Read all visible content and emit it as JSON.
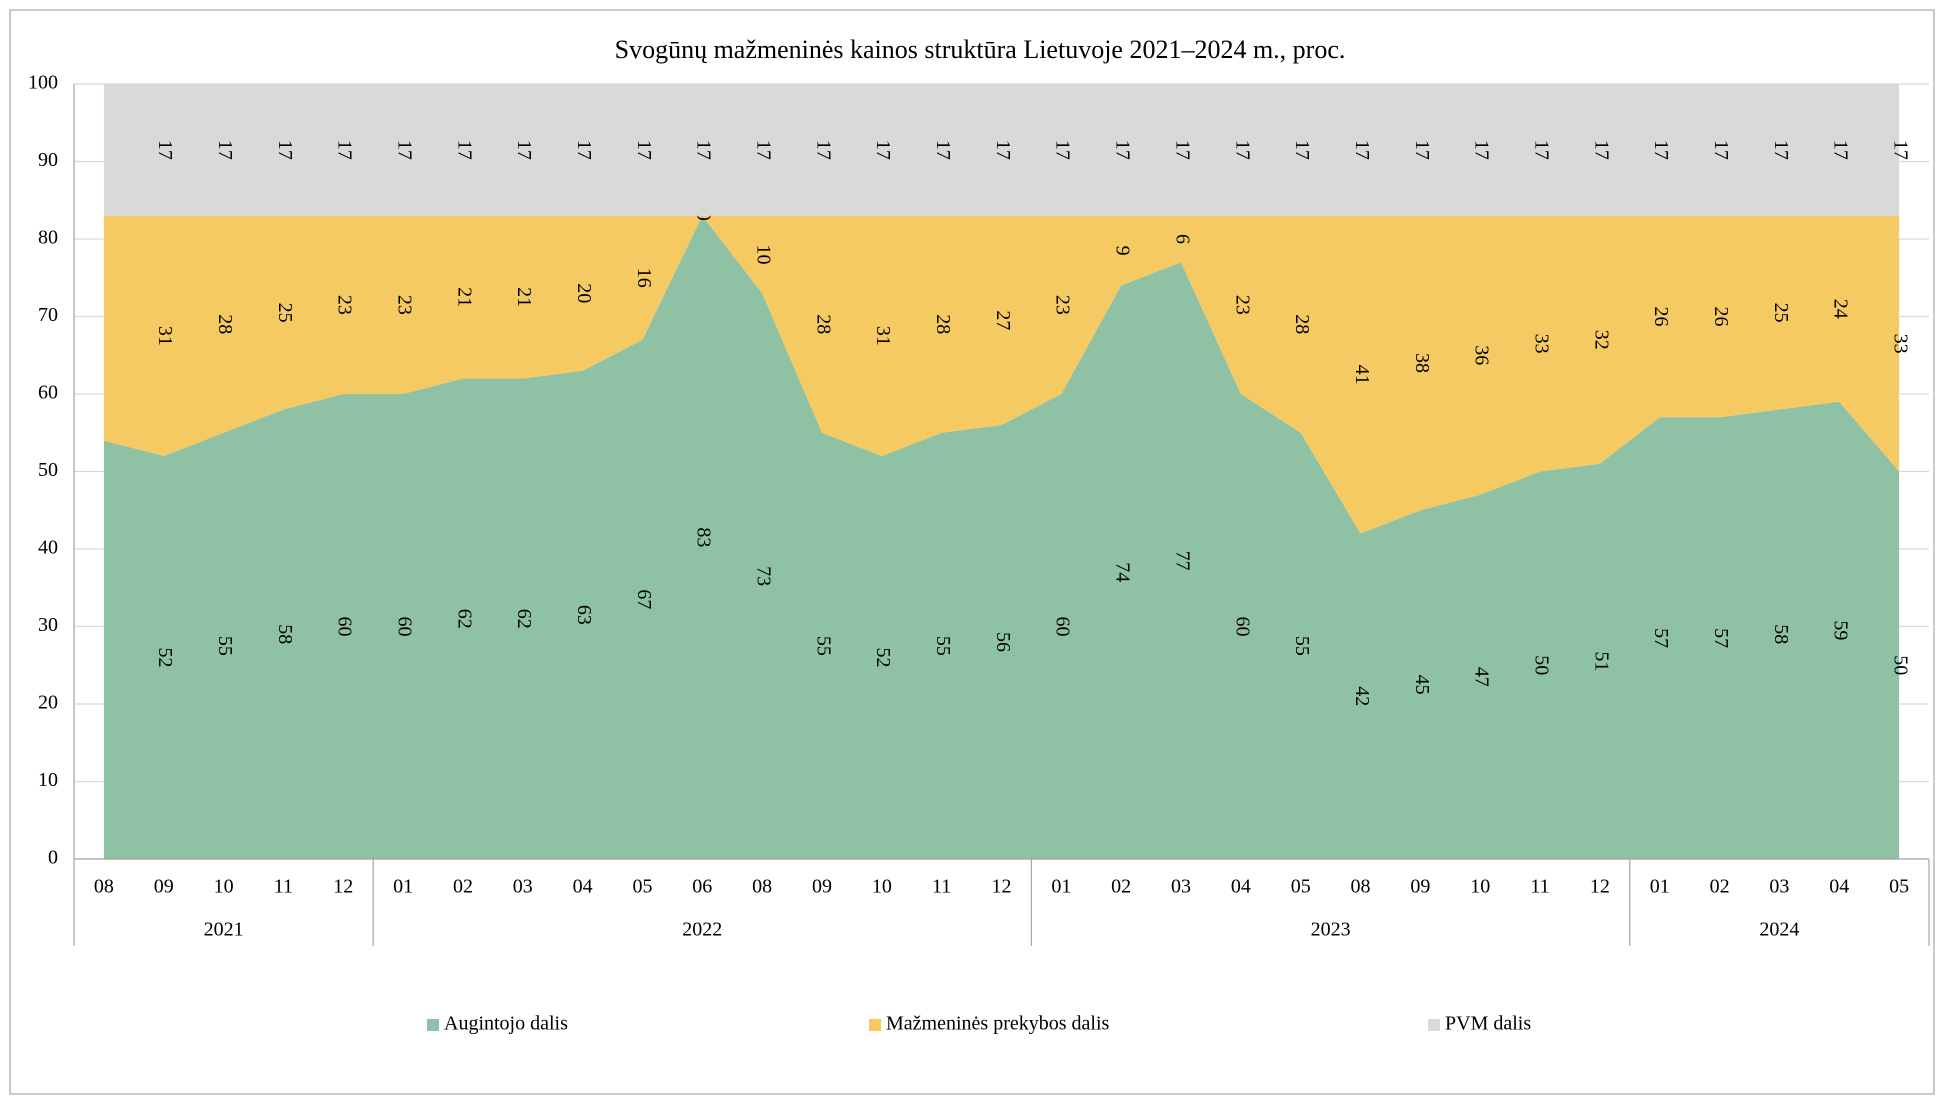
{
  "chart_data": {
    "type": "stacked_area",
    "title": "Svogūnų mažmeninės kainos struktūra Lietuvoje 2021–2024 m., proc.",
    "categories": [
      "08",
      "09",
      "10",
      "11",
      "12",
      "01",
      "02",
      "03",
      "04",
      "05",
      "06",
      "08",
      "09",
      "10",
      "11",
      "12",
      "01",
      "02",
      "03",
      "04",
      "05",
      "08",
      "09",
      "10",
      "11",
      "12",
      "01",
      "02",
      "03",
      "04",
      "05"
    ],
    "years": [
      "2021",
      null,
      null,
      null,
      null,
      "2022",
      null,
      null,
      null,
      null,
      null,
      null,
      null,
      null,
      null,
      null,
      "2023",
      null,
      null,
      null,
      null,
      null,
      null,
      null,
      null,
      null,
      "2024",
      null,
      null,
      null,
      null
    ],
    "series": [
      {
        "name": "Augintojo dalis",
        "color": "#8fc1a5",
        "values": [
          54,
          52,
          55,
          58,
          60,
          60,
          62,
          62,
          63,
          67,
          83,
          73,
          55,
          52,
          55,
          56,
          60,
          74,
          77,
          60,
          55,
          42,
          45,
          47,
          50,
          51,
          57,
          57,
          58,
          59,
          50
        ],
        "value_labels": [
          null,
          "52",
          "55",
          "58",
          "60",
          "60",
          "62",
          "62",
          "63",
          "67",
          "83",
          "73",
          "55",
          "52",
          "55",
          "56",
          "60",
          "74",
          "77",
          "60",
          "55",
          "42",
          "45",
          "47",
          "50",
          "51",
          "57",
          "57",
          "58",
          "59",
          "50"
        ]
      },
      {
        "name": "Mažmeninės prekybos dalis",
        "color": "#f5ca63",
        "values": [
          29,
          31,
          28,
          25,
          23,
          23,
          21,
          21,
          20,
          16,
          0,
          10,
          28,
          31,
          28,
          27,
          23,
          9,
          6,
          23,
          28,
          41,
          38,
          36,
          33,
          32,
          26,
          26,
          25,
          24,
          33
        ],
        "value_labels": [
          null,
          "31",
          "28",
          "25",
          "23",
          "23",
          "21",
          "21",
          "20",
          "16",
          "0",
          "10",
          "28",
          "31",
          "28",
          "27",
          "23",
          "9",
          "6",
          "23",
          "28",
          "41",
          "38",
          "36",
          "33",
          "32",
          "26",
          "26",
          "25",
          "24",
          "33"
        ]
      },
      {
        "name": "PVM dalis",
        "color": "#d9d9d9",
        "values": [
          17,
          17,
          17,
          17,
          17,
          17,
          17,
          17,
          17,
          17,
          17,
          17,
          17,
          17,
          17,
          17,
          17,
          17,
          17,
          17,
          17,
          17,
          17,
          17,
          17,
          17,
          17,
          17,
          17,
          17,
          17
        ],
        "value_labels": [
          null,
          "17",
          "17",
          "17",
          "17",
          "17",
          "17",
          "17",
          "17",
          "17",
          "17",
          "17",
          "17",
          "17",
          "17",
          "17",
          "17",
          "17",
          "17",
          "17",
          "17",
          "17",
          "17",
          "17",
          "17",
          "17",
          "17",
          "17",
          "17",
          "17",
          "17"
        ]
      }
    ],
    "ylim": [
      0,
      100
    ],
    "yticks": [
      0,
      10,
      20,
      30,
      40,
      50,
      60,
      70,
      80,
      90,
      100
    ],
    "grid": true,
    "legend": "bottom"
  }
}
